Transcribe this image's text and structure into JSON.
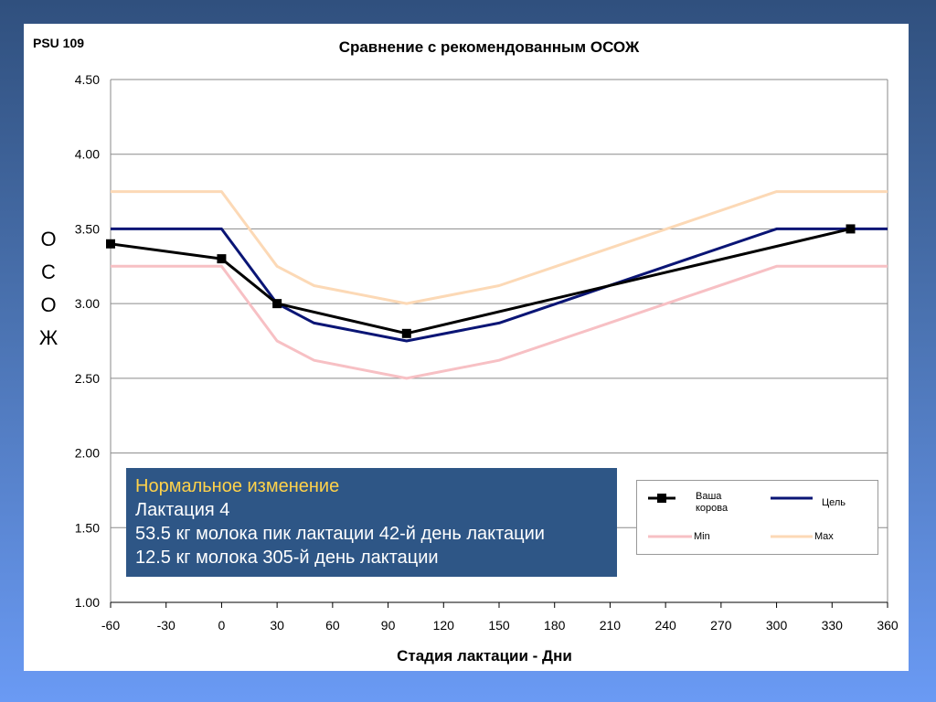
{
  "slide": {
    "id_label": "PSU 109"
  },
  "chart_data": {
    "type": "line",
    "title": "Сравнение с рекомендованным ОСОЖ",
    "xlabel": "Стадия лактации - Дни",
    "ylabel_letters": [
      "О",
      "С",
      "О",
      "Ж"
    ],
    "xlim": [
      -60,
      360
    ],
    "ylim": [
      1.0,
      4.5
    ],
    "x_ticks": [
      "-60",
      "-30",
      "0",
      "30",
      "60",
      "90",
      "120",
      "150",
      "180",
      "210",
      "240",
      "270",
      "300",
      "330",
      "360"
    ],
    "y_ticks": [
      "1.00",
      "1.50",
      "2.00",
      "2.50",
      "3.00",
      "3.50",
      "4.00",
      "4.50"
    ],
    "grid": "horizontal",
    "legend_position": "bottom-right",
    "series": [
      {
        "name": "Max",
        "color": "#fcd9b6",
        "marker": "none",
        "points": [
          [
            -60,
            3.75
          ],
          [
            0,
            3.75
          ],
          [
            30,
            3.25
          ],
          [
            50,
            3.12
          ],
          [
            100,
            3.0
          ],
          [
            150,
            3.12
          ],
          [
            200,
            3.33
          ],
          [
            250,
            3.54
          ],
          [
            300,
            3.75
          ],
          [
            360,
            3.75
          ]
        ]
      },
      {
        "name": "Min",
        "color": "#f7c0c4",
        "marker": "none",
        "points": [
          [
            -60,
            3.25
          ],
          [
            0,
            3.25
          ],
          [
            30,
            2.75
          ],
          [
            50,
            2.62
          ],
          [
            100,
            2.5
          ],
          [
            150,
            2.62
          ],
          [
            200,
            2.83
          ],
          [
            250,
            3.04
          ],
          [
            300,
            3.25
          ],
          [
            360,
            3.25
          ]
        ]
      },
      {
        "name": "Цель",
        "color": "#0a1575",
        "marker": "none",
        "points": [
          [
            -60,
            3.5
          ],
          [
            0,
            3.5
          ],
          [
            30,
            3.0
          ],
          [
            50,
            2.87
          ],
          [
            100,
            2.75
          ],
          [
            150,
            2.87
          ],
          [
            200,
            3.08
          ],
          [
            250,
            3.29
          ],
          [
            300,
            3.5
          ],
          [
            360,
            3.5
          ]
        ]
      },
      {
        "name": "Ваша корова",
        "color": "#000000",
        "marker": "square",
        "points": [
          [
            -60,
            3.4
          ],
          [
            0,
            3.3
          ],
          [
            30,
            3.0
          ],
          [
            100,
            2.8
          ],
          [
            340,
            3.5
          ]
        ]
      }
    ],
    "legend": [
      {
        "label": "Ваша корова",
        "color": "#000000",
        "marker": "square"
      },
      {
        "label": "Цель",
        "color": "#0a1575",
        "marker": "none"
      },
      {
        "label": "Min",
        "color": "#f7c0c4",
        "marker": "none"
      },
      {
        "label": "Max",
        "color": "#fcd9b6",
        "marker": "none"
      }
    ]
  },
  "note_box": {
    "line1": "Нормальное изменение",
    "line2": "Лактация 4",
    "line3": "53.5 кг молока пик лактации 42-й день лактации",
    "line4": "12.5 кг молока 305-й день лактации",
    "highlight_color": "#ffd24a"
  }
}
